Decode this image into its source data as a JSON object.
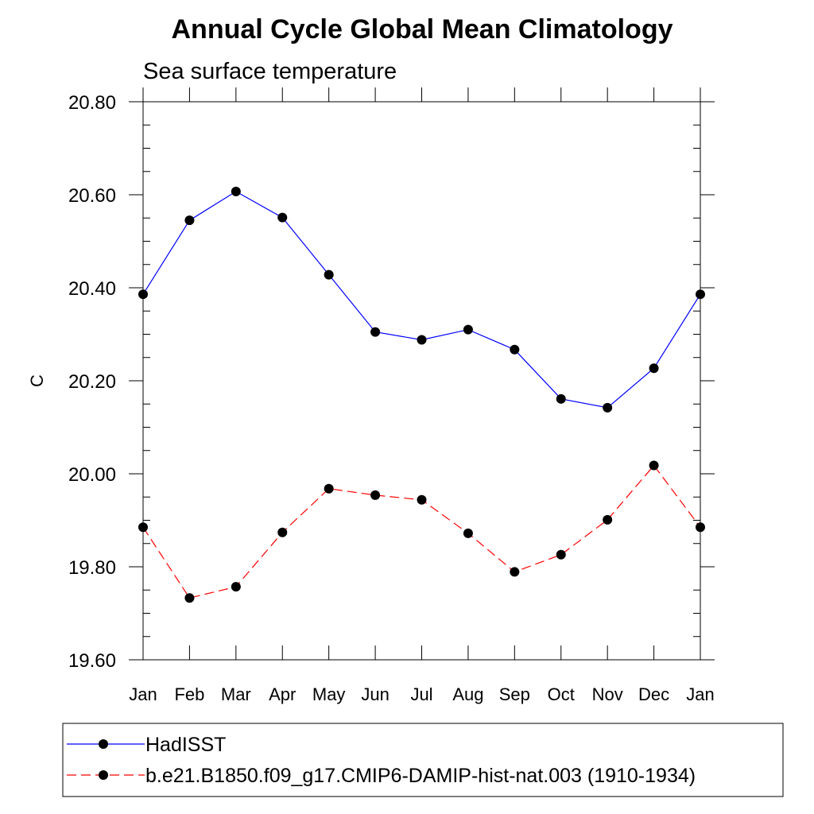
{
  "chart_data": {
    "type": "line",
    "title": "Annual Cycle Global Mean Climatology",
    "subtitle": "Sea surface temperature",
    "ylabel": "C",
    "xlabel": "",
    "categories": [
      "Jan",
      "Feb",
      "Mar",
      "Apr",
      "May",
      "Jun",
      "Jul",
      "Aug",
      "Sep",
      "Oct",
      "Nov",
      "Dec",
      "Jan"
    ],
    "ylim": [
      19.6,
      20.8
    ],
    "yticks": [
      "19.60",
      "19.80",
      "20.00",
      "20.20",
      "20.40",
      "20.60",
      "20.80"
    ],
    "grid": false,
    "legend_position": "bottom",
    "series": [
      {
        "name": "HadISST",
        "color": "#0000ff",
        "line_style": "solid",
        "marker": "filled-circle",
        "values": [
          20.386,
          20.545,
          20.607,
          20.551,
          20.428,
          20.305,
          20.288,
          20.31,
          20.267,
          20.161,
          20.142,
          20.227,
          20.386
        ]
      },
      {
        "name": "b.e21.B1850.f09_g17.CMIP6-DAMIP-hist-nat.003 (1910-1934)",
        "color": "#ff0000",
        "line_style": "dashed",
        "marker": "filled-circle",
        "values": [
          19.885,
          19.733,
          19.757,
          19.874,
          19.968,
          19.954,
          19.944,
          19.872,
          19.789,
          19.826,
          19.901,
          20.018,
          19.885
        ]
      }
    ]
  }
}
